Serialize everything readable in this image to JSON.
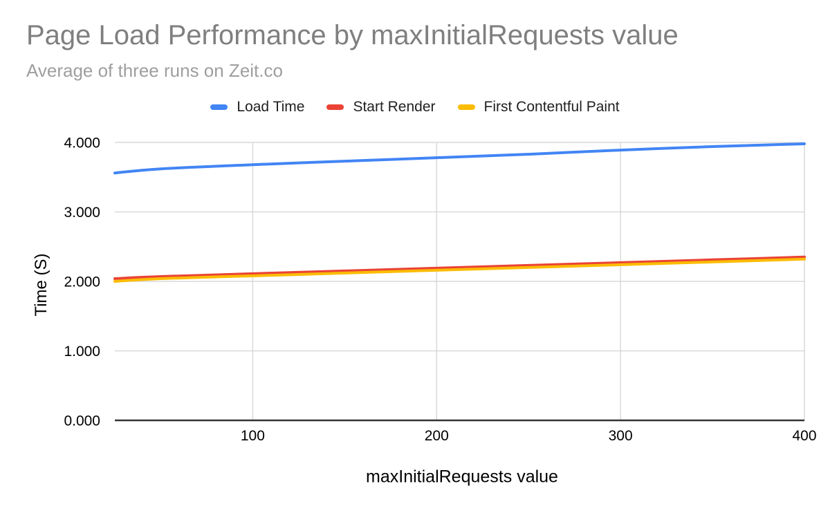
{
  "colors": {
    "series_blue": "#4285F4",
    "series_red": "#EA4335",
    "series_yellow": "#FBBC04",
    "gridline": "#d9d9d9",
    "axis_line": "#333333",
    "title_text": "#7f7f7f",
    "subtitle_text": "#9e9e9e",
    "tick_text": "#000000",
    "legend_text": "#1f1f1f",
    "background": "#ffffff"
  },
  "chart_data": {
    "type": "line",
    "title": "Page Load Performance by maxInitialRequests value",
    "subtitle": "Average of three runs on Zeit.co",
    "xlabel": "maxInitialRequests value",
    "ylabel": "Time (S)",
    "x": [
      25,
      50,
      100,
      150,
      200,
      250,
      300,
      350,
      400
    ],
    "series": [
      {
        "name": "Load Time",
        "color": "#4285F4",
        "values": [
          3.56,
          3.62,
          3.68,
          3.73,
          3.78,
          3.83,
          3.89,
          3.94,
          3.98
        ]
      },
      {
        "name": "Start Render",
        "color": "#EA4335",
        "values": [
          2.04,
          2.07,
          2.11,
          2.15,
          2.19,
          2.23,
          2.27,
          2.31,
          2.35
        ]
      },
      {
        "name": "First Contentful Paint",
        "color": "#FBBC04",
        "values": [
          2.0,
          2.04,
          2.08,
          2.12,
          2.16,
          2.2,
          2.24,
          2.28,
          2.32
        ]
      }
    ],
    "xlim": [
      25,
      400
    ],
    "ylim": [
      0,
      4
    ],
    "x_ticks": [
      {
        "value": 100,
        "label": "100"
      },
      {
        "value": 200,
        "label": "200"
      },
      {
        "value": 300,
        "label": "300"
      },
      {
        "value": 400,
        "label": "400"
      }
    ],
    "y_ticks": [
      {
        "value": 0,
        "label": "0.000"
      },
      {
        "value": 1,
        "label": "1.000"
      },
      {
        "value": 2,
        "label": "2.000"
      },
      {
        "value": 3,
        "label": "3.000"
      },
      {
        "value": 4,
        "label": "4.000"
      }
    ],
    "grid": true,
    "smooth": true,
    "legend_position": "top"
  }
}
